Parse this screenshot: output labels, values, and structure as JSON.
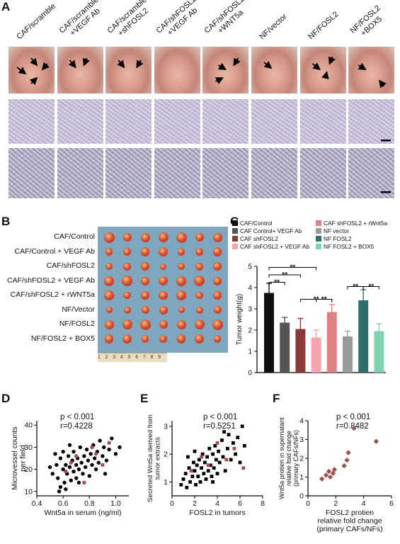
{
  "panels": {
    "a": "A",
    "b": "B",
    "c": "C",
    "d": "D",
    "e": "E",
    "f": "F"
  },
  "panel_a": {
    "groups": [
      "CAF/scramble",
      "CAF/scramble\n+VEGF Ab",
      "CAF/scramble\n+shFOSL2",
      "CAF/shFOSL2\n+VEGF Ab",
      "CAF/shFOSL2\n+WNT5a",
      "NF/vector",
      "NF/FOSL2",
      "NF/FOSL2\n+BOX5"
    ]
  },
  "panel_b": {
    "rows": [
      "CAF/Control",
      "CAF/Control + VEGF Ab",
      "CAF/shFOSL2",
      "CAF/shFOSL2 + VEGF Ab",
      "CAF/shFOSL2 + rWNT5a",
      "NF/Vector",
      "NF/FOSL2",
      "NF/FOSL2 + BOX5"
    ],
    "ruler_numbers": "1 2 3 4 5 6 7 8 9 10"
  },
  "chart_data": [
    {
      "panel": "C",
      "type": "bar",
      "ylabel": "Tumor weight(g)",
      "ylim": [
        0,
        5
      ],
      "yticks": [
        0,
        1,
        2,
        3,
        4,
        5
      ],
      "series": [
        {
          "name": "CAF/Control",
          "value": 3.75,
          "error": 0.45,
          "color": "#111111"
        },
        {
          "name": "CAF Control+ VEGF Ab",
          "value": 2.35,
          "error": 0.25,
          "color": "#555555"
        },
        {
          "name": "CAF shFOSL2",
          "value": 2.05,
          "error": 0.5,
          "color": "#8b3a3a"
        },
        {
          "name": "CAF shFOSL2 + VEGF Ab",
          "value": 1.65,
          "error": 0.35,
          "color": "#f2a5ae"
        },
        {
          "name": "CAF shFOSL2 + rWnt5a",
          "value": 2.85,
          "error": 0.35,
          "color": "#de8383"
        },
        {
          "name": "NF vector",
          "value": 1.7,
          "error": 0.25,
          "color": "#9a9a9a"
        },
        {
          "name": "NF FOSL2",
          "value": 3.4,
          "error": 0.5,
          "color": "#2e6e6e"
        },
        {
          "name": "NF FOSL2 + BOX5",
          "value": 1.95,
          "error": 0.35,
          "color": "#7fd2ae"
        }
      ],
      "significance": "**"
    },
    {
      "panel": "D",
      "type": "scatter",
      "xlabel": "Wnt5a in serum (ng/ml)",
      "ylabel": "Microvessel counts\nper field",
      "xlim": [
        0.4,
        1.1
      ],
      "ylim": [
        8,
        42
      ],
      "xticks": [
        "0.4",
        "0.6",
        "0.8",
        "1.0"
      ],
      "yticks": [
        10,
        20,
        30,
        40
      ],
      "stats": [
        "p < 0.001",
        "r=0.4228"
      ],
      "points_black": [
        [
          0.52,
          18
        ],
        [
          0.55,
          22
        ],
        [
          0.56,
          16
        ],
        [
          0.58,
          25
        ],
        [
          0.58,
          12
        ],
        [
          0.6,
          20
        ],
        [
          0.6,
          28
        ],
        [
          0.61,
          14
        ],
        [
          0.62,
          22
        ],
        [
          0.63,
          18
        ],
        [
          0.64,
          26
        ],
        [
          0.65,
          21
        ],
        [
          0.66,
          15
        ],
        [
          0.67,
          24
        ],
        [
          0.68,
          19
        ],
        [
          0.68,
          28
        ],
        [
          0.7,
          22
        ],
        [
          0.7,
          16
        ],
        [
          0.71,
          25
        ],
        [
          0.72,
          20
        ],
        [
          0.73,
          30
        ],
        [
          0.74,
          23
        ],
        [
          0.75,
          18
        ],
        [
          0.76,
          26
        ],
        [
          0.77,
          21
        ],
        [
          0.78,
          29
        ],
        [
          0.79,
          24
        ],
        [
          0.8,
          17
        ],
        [
          0.81,
          27
        ],
        [
          0.82,
          22
        ],
        [
          0.83,
          31
        ],
        [
          0.84,
          25
        ],
        [
          0.85,
          20
        ],
        [
          0.86,
          28
        ],
        [
          0.87,
          23
        ],
        [
          0.88,
          33
        ],
        [
          0.9,
          26
        ],
        [
          0.91,
          30
        ],
        [
          0.93,
          24
        ],
        [
          0.95,
          29
        ],
        [
          0.97,
          34
        ],
        [
          1.0,
          27
        ],
        [
          1.03,
          30
        ],
        [
          0.57,
          10
        ],
        [
          0.62,
          11
        ],
        [
          0.5,
          21
        ],
        [
          0.54,
          27
        ],
        [
          0.65,
          31
        ],
        [
          0.72,
          14
        ],
        [
          0.92,
          18
        ]
      ],
      "points_red": [
        [
          0.62,
          19
        ],
        [
          0.7,
          26
        ],
        [
          0.76,
          14
        ],
        [
          0.82,
          30
        ],
        [
          0.9,
          22
        ],
        [
          0.95,
          32
        ],
        [
          0.66,
          23
        ],
        [
          0.85,
          27
        ]
      ]
    },
    {
      "panel": "E",
      "type": "scatter",
      "xlabel": "FOSL2 in tumors",
      "ylabel": "Secreted Wnt5a derived from\ntumor extracts",
      "xlim": [
        0,
        8
      ],
      "ylim": [
        0.5,
        3.2
      ],
      "xticks": [
        0,
        2,
        4,
        6,
        8
      ],
      "yticks": [
        1,
        2,
        3
      ],
      "stats": [
        "p < 0.001",
        "r=0.5251"
      ],
      "points_black": [
        [
          0.8,
          0.9
        ],
        [
          1.0,
          1.1
        ],
        [
          1.2,
          1.3
        ],
        [
          1.3,
          0.8
        ],
        [
          1.5,
          1.5
        ],
        [
          1.6,
          1.0
        ],
        [
          1.8,
          1.2
        ],
        [
          1.9,
          1.7
        ],
        [
          2.0,
          1.4
        ],
        [
          2.1,
          0.9
        ],
        [
          2.2,
          1.6
        ],
        [
          2.3,
          1.2
        ],
        [
          2.4,
          1.8
        ],
        [
          2.5,
          1.0
        ],
        [
          2.6,
          1.5
        ],
        [
          2.7,
          2.0
        ],
        [
          2.8,
          1.3
        ],
        [
          2.9,
          1.7
        ],
        [
          3.0,
          1.1
        ],
        [
          3.1,
          1.9
        ],
        [
          3.2,
          1.4
        ],
        [
          3.3,
          2.2
        ],
        [
          3.4,
          1.6
        ],
        [
          3.5,
          1.2
        ],
        [
          3.6,
          2.0
        ],
        [
          3.7,
          1.5
        ],
        [
          3.8,
          2.3
        ],
        [
          3.9,
          1.8
        ],
        [
          4.0,
          1.3
        ],
        [
          4.1,
          2.1
        ],
        [
          4.2,
          1.7
        ],
        [
          4.4,
          2.5
        ],
        [
          4.5,
          1.9
        ],
        [
          4.7,
          1.4
        ],
        [
          4.9,
          2.2
        ],
        [
          5.0,
          2.7
        ],
        [
          5.2,
          1.8
        ],
        [
          5.4,
          2.4
        ],
        [
          5.6,
          2.0
        ],
        [
          5.8,
          2.6
        ],
        [
          6.0,
          1.7
        ],
        [
          6.2,
          3.0
        ],
        [
          6.4,
          2.3
        ],
        [
          1.4,
          1.9
        ],
        [
          2.0,
          2.1
        ],
        [
          3.6,
          1.0
        ],
        [
          4.6,
          2.8
        ]
      ],
      "points_red": [
        [
          1.7,
          1.4
        ],
        [
          2.6,
          1.9
        ],
        [
          3.2,
          1.6
        ],
        [
          4.0,
          2.4
        ],
        [
          4.8,
          1.8
        ],
        [
          5.5,
          2.2
        ],
        [
          6.3,
          1.5
        ]
      ]
    },
    {
      "panel": "F",
      "type": "scatter",
      "xlabel": "FOSL2 protien\nrelative fold change\n(primary CAFs/NFs)",
      "ylabel": "Wnt5a protien in supernatant\nrelative fold change\n(primary CAFs/NFs)",
      "xlim": [
        0,
        6
      ],
      "ylim": [
        0,
        4
      ],
      "xticks": [
        0,
        2,
        4,
        6
      ],
      "yticks": [
        0,
        1,
        2,
        3,
        4
      ],
      "stats": [
        "p < 0.001",
        "r=0.8482"
      ],
      "points_red": [
        [
          1.0,
          0.9
        ],
        [
          1.3,
          1.1
        ],
        [
          1.5,
          1.3
        ],
        [
          1.6,
          1.0
        ],
        [
          1.8,
          1.2
        ],
        [
          1.9,
          1.4
        ],
        [
          2.6,
          1.6
        ],
        [
          2.8,
          1.9
        ],
        [
          2.9,
          2.3
        ],
        [
          3.3,
          3.6
        ],
        [
          4.9,
          2.9
        ]
      ]
    }
  ]
}
